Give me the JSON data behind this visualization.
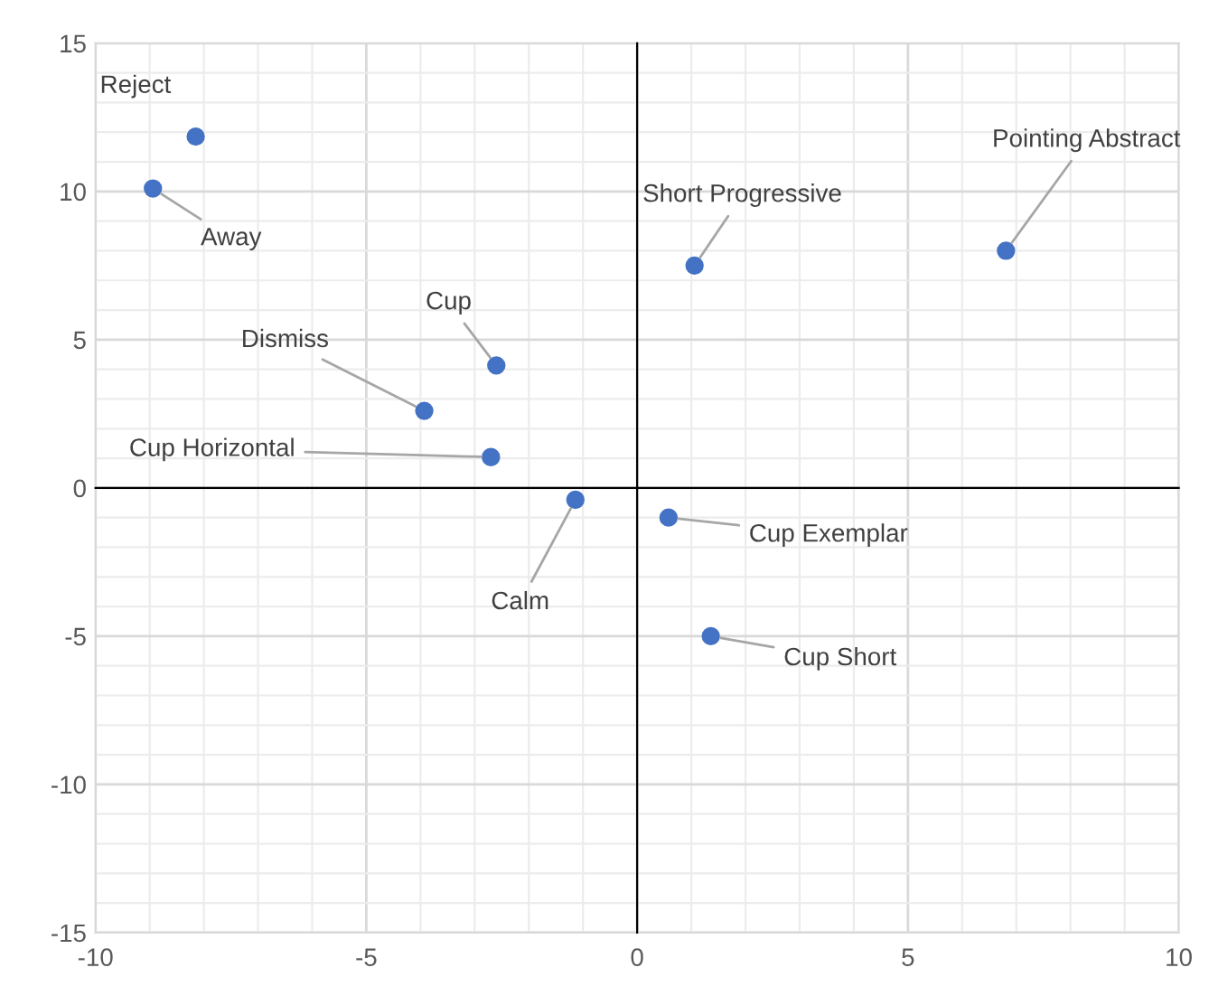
{
  "chart_data": {
    "type": "scatter",
    "series": [
      {
        "color": "#4472c4",
        "x": [
          -8.15,
          -8.94,
          -2.6,
          -3.93,
          -2.7,
          -1.14,
          1.06,
          6.81,
          0.58,
          1.36
        ],
        "values": [
          11.85,
          10.1,
          4.13,
          2.6,
          1.04,
          -0.4,
          7.5,
          8.0,
          -1.0,
          -5.0
        ]
      }
    ],
    "annotations": [
      {
        "text": "Reject",
        "x": -8.15,
        "y": 11.85
      },
      {
        "text": "Away",
        "x": -8.94,
        "y": 10.1
      },
      {
        "text": "Cup",
        "x": -2.6,
        "y": 4.13
      },
      {
        "text": "Dismiss",
        "x": -3.93,
        "y": 2.6
      },
      {
        "text": "Cup Horizontal",
        "x": -2.7,
        "y": 1.04
      },
      {
        "text": "Calm",
        "x": -1.14,
        "y": -0.4
      },
      {
        "text": "Short Progressive",
        "x": 1.06,
        "y": 7.5
      },
      {
        "text": "Pointing Abstract",
        "x": 6.81,
        "y": 8.0
      },
      {
        "text": "Cup Exemplar",
        "x": 0.58,
        "y": -1.0
      },
      {
        "text": "Cup Short",
        "x": 1.36,
        "y": -5.0
      }
    ],
    "xlim": [
      -10,
      10
    ],
    "xticks": [
      -10,
      -5,
      0,
      5,
      10
    ],
    "ylim": [
      -15,
      15
    ],
    "yticks": [
      -15,
      -10,
      -5,
      0,
      5,
      10,
      15
    ],
    "grid": true,
    "marker": "circle",
    "legend": false
  }
}
